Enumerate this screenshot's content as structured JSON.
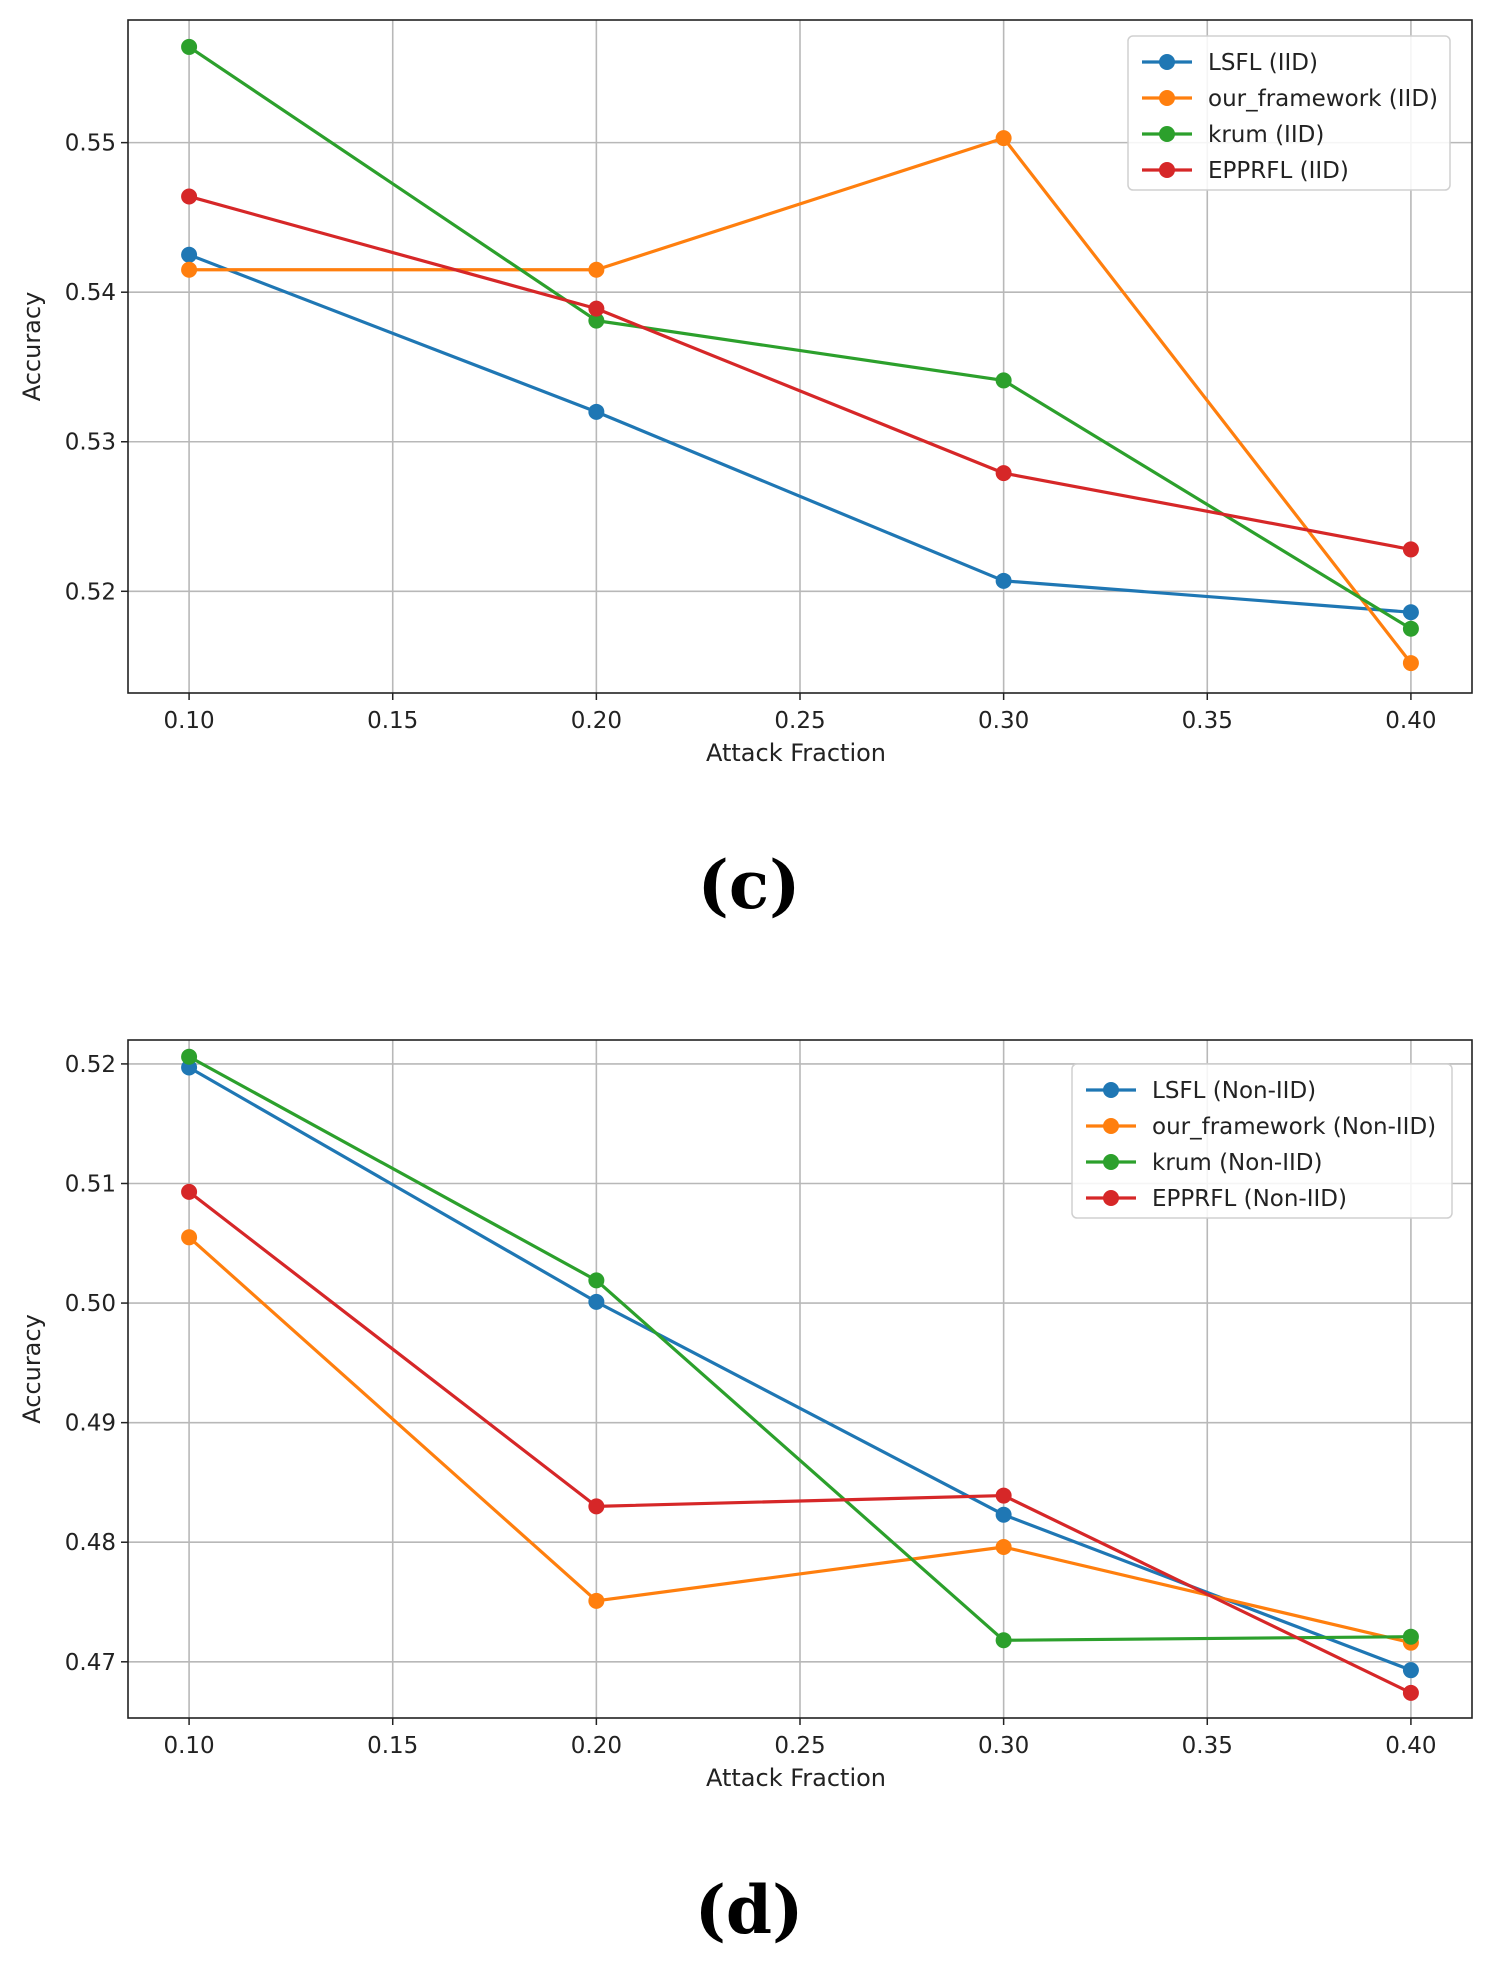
{
  "chart_data": [
    {
      "type": "line",
      "caption": "(c)",
      "xlabel": "Attack Fraction",
      "ylabel": "Accuracy",
      "xlim": [
        0.085,
        0.415
      ],
      "ylim": [
        0.5132,
        0.5582
      ],
      "xticks": [
        0.1,
        0.15,
        0.2,
        0.25,
        0.3,
        0.35,
        0.4
      ],
      "xtick_labels": [
        "0.10",
        "0.15",
        "0.20",
        "0.25",
        "0.30",
        "0.35",
        "0.40"
      ],
      "yticks": [
        0.52,
        0.53,
        0.54,
        0.55
      ],
      "ytick_labels": [
        "0.52",
        "0.53",
        "0.54",
        "0.55"
      ],
      "grid": true,
      "legend_position": "top-right",
      "x": [
        0.1,
        0.2,
        0.3,
        0.4
      ],
      "series": [
        {
          "name": "LSFL (IID)",
          "color": "#1f77b4",
          "values": [
            0.5425,
            0.532,
            0.5207,
            0.5186
          ]
        },
        {
          "name": "our_framework (IID)",
          "color": "#ff7f0e",
          "values": [
            0.5415,
            0.5415,
            0.5503,
            0.5152
          ]
        },
        {
          "name": "krum (IID)",
          "color": "#2ca02c",
          "values": [
            0.5564,
            0.5381,
            0.5341,
            0.5175
          ]
        },
        {
          "name": "EPPRFL (IID)",
          "color": "#d62728",
          "values": [
            0.5464,
            0.5389,
            0.5279,
            0.5228
          ]
        }
      ]
    },
    {
      "type": "line",
      "caption": "(d)",
      "xlabel": "Attack Fraction",
      "ylabel": "Accuracy",
      "xlim": [
        0.085,
        0.415
      ],
      "ylim": [
        0.4653,
        0.522
      ],
      "xticks": [
        0.1,
        0.15,
        0.2,
        0.25,
        0.3,
        0.35,
        0.4
      ],
      "xtick_labels": [
        "0.10",
        "0.15",
        "0.20",
        "0.25",
        "0.30",
        "0.35",
        "0.40"
      ],
      "yticks": [
        0.47,
        0.48,
        0.49,
        0.5,
        0.51,
        0.52
      ],
      "ytick_labels": [
        "0.47",
        "0.48",
        "0.49",
        "0.50",
        "0.51",
        "0.52"
      ],
      "grid": true,
      "legend_position": "top-right",
      "x": [
        0.1,
        0.2,
        0.3,
        0.4
      ],
      "series": [
        {
          "name": "LSFL (Non-IID)",
          "color": "#1f77b4",
          "values": [
            0.5197,
            0.5001,
            0.4823,
            0.4693
          ]
        },
        {
          "name": "our_framework (Non-IID)",
          "color": "#ff7f0e",
          "values": [
            0.5055,
            0.4751,
            0.4796,
            0.4716
          ]
        },
        {
          "name": "krum (Non-IID)",
          "color": "#2ca02c",
          "values": [
            0.5206,
            0.5019,
            0.4718,
            0.4721
          ]
        },
        {
          "name": "EPPRFL (Non-IID)",
          "color": "#d62728",
          "values": [
            0.5093,
            0.483,
            0.4839,
            0.4674
          ]
        }
      ]
    }
  ]
}
